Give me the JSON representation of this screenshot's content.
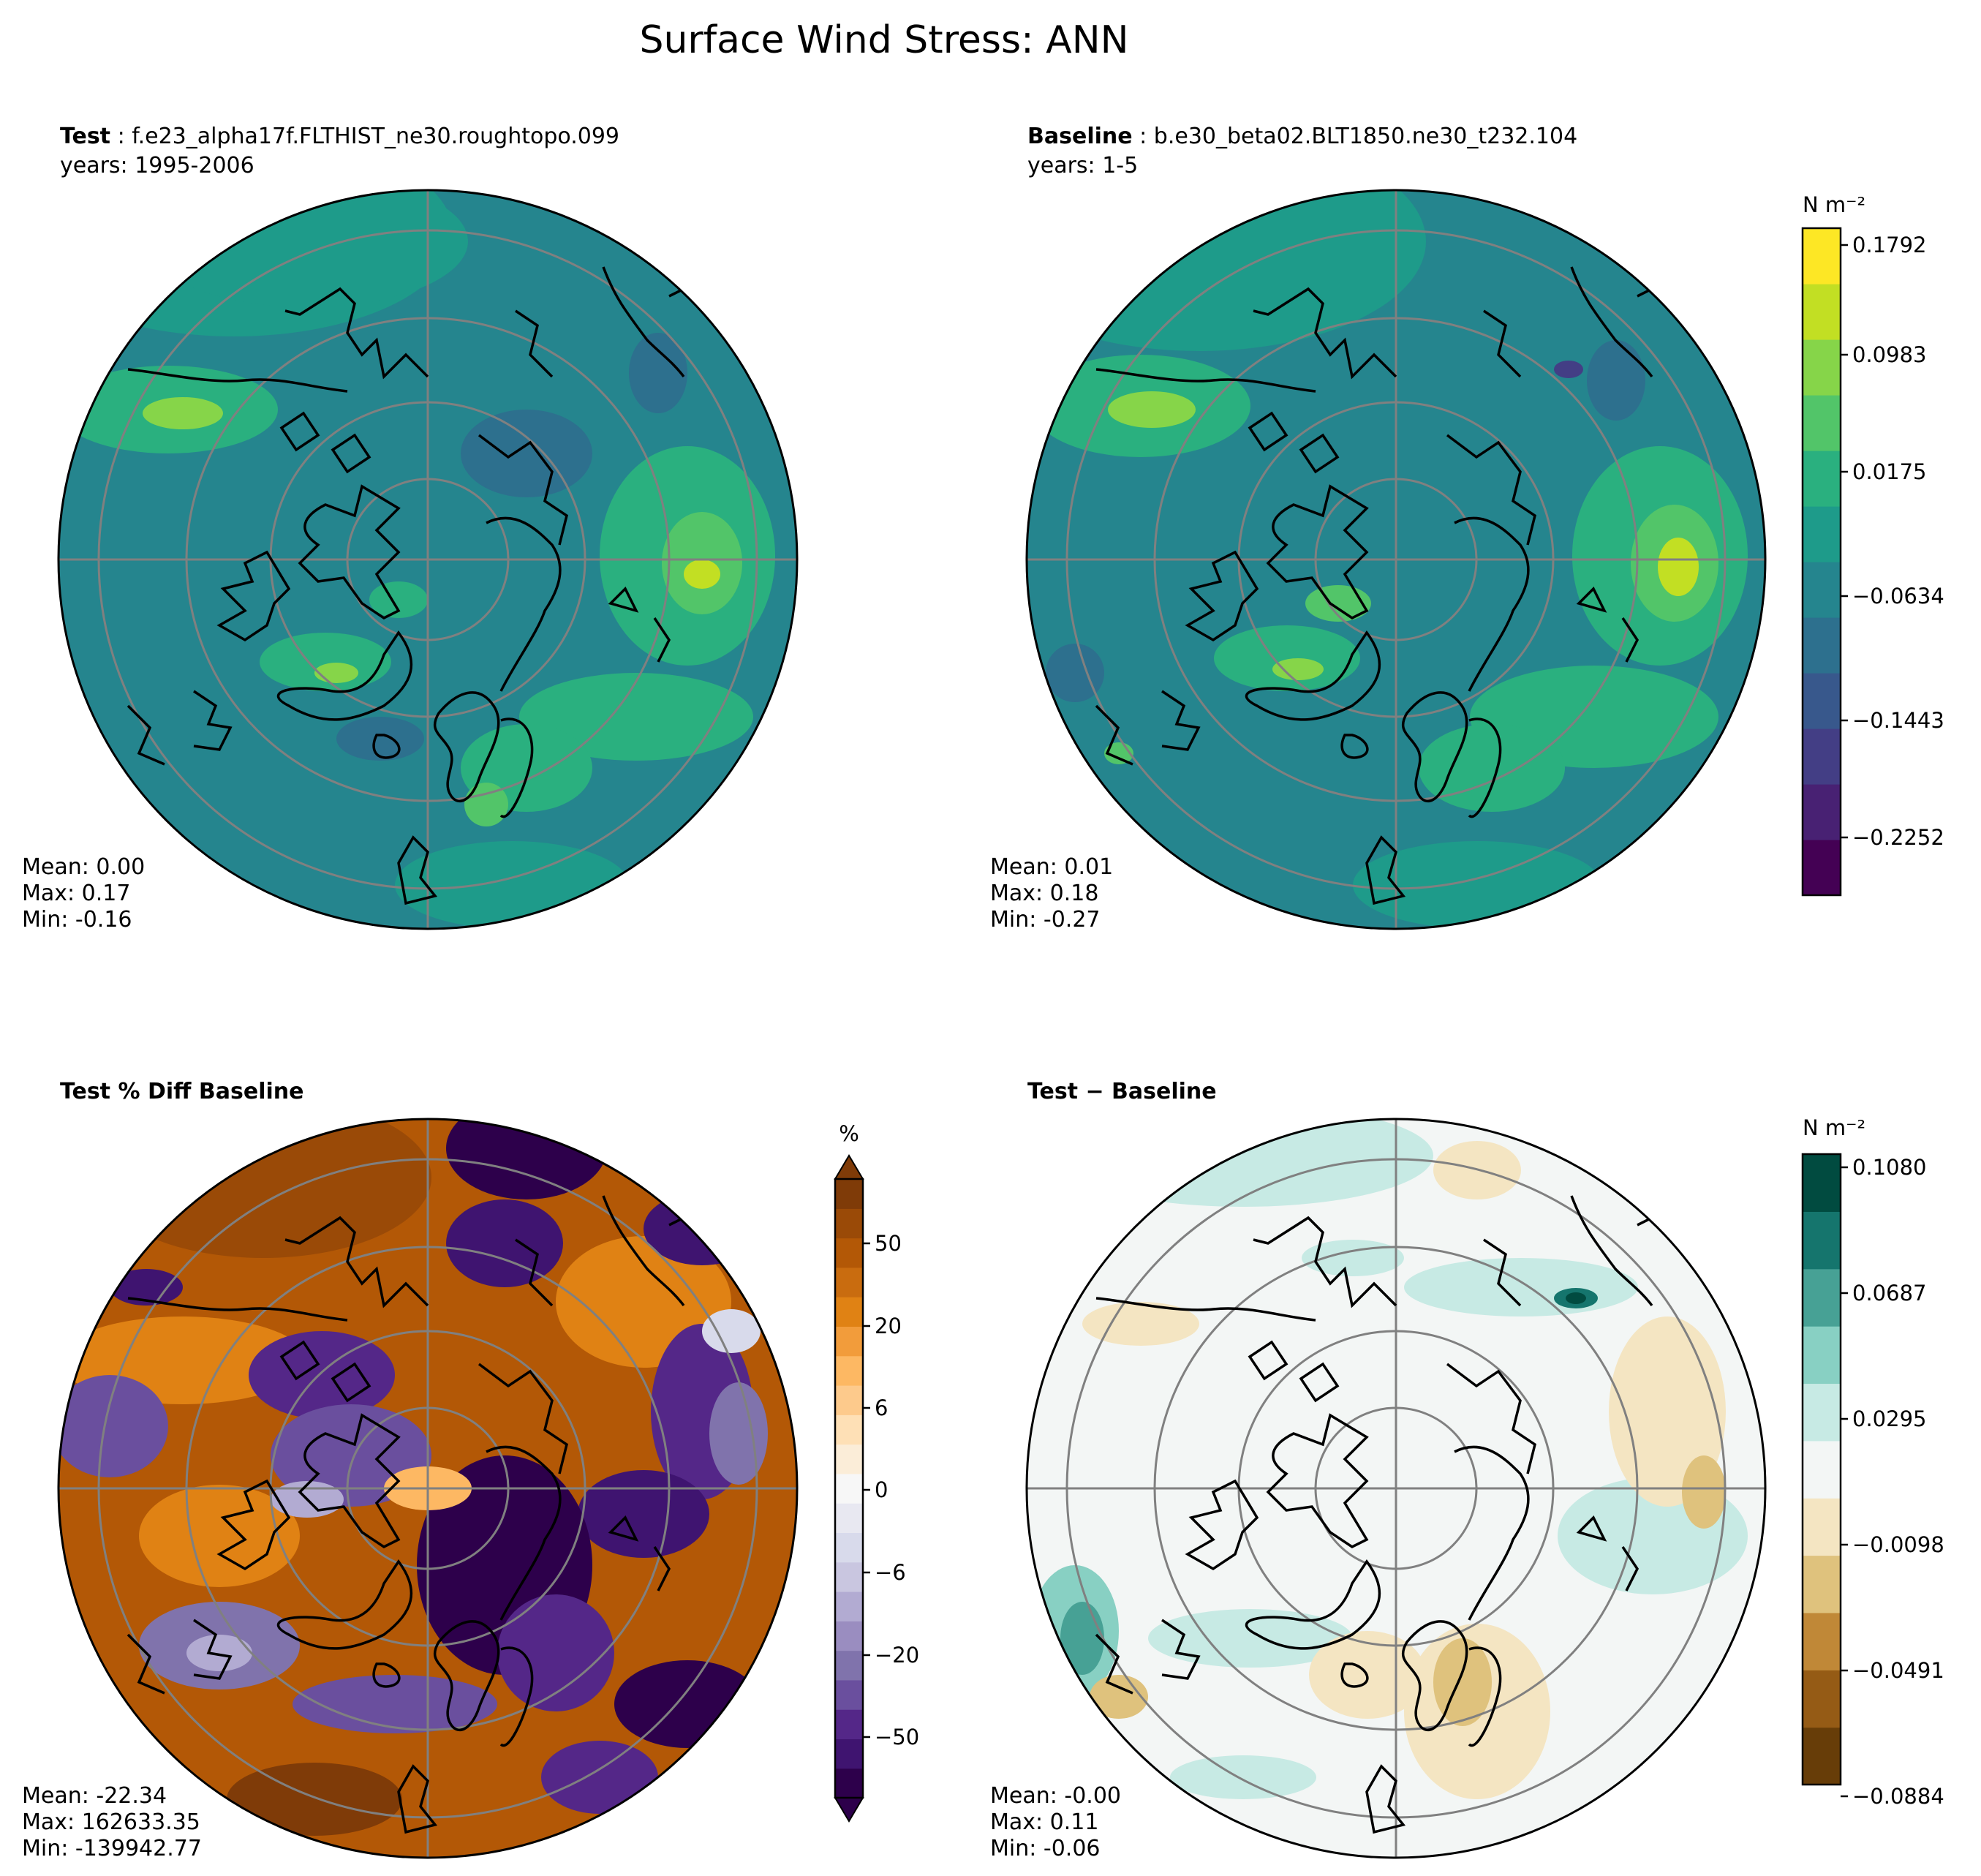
{
  "figure": {
    "title": "Surface Wind Stress: ANN"
  },
  "panels": {
    "test": {
      "label": "Test",
      "case": "f.e23_alpha17f.FLTHIST_ne30.roughtopo.099",
      "years": "years: 1995-2006",
      "stats": [
        "Mean:  0.00",
        "Max:  0.17",
        "Min: -0.16"
      ]
    },
    "baseline": {
      "label": "Baseline",
      "case": "b.e30_beta02.BLT1850.ne30_t232.104",
      "years": "years: 1-5",
      "stats": [
        "Mean:  0.01",
        "Max:  0.18",
        "Min: -0.27"
      ]
    },
    "pctdiff": {
      "title": "Test % Diff Baseline",
      "stats": [
        "Mean: -22.34",
        "Max: 162633.35",
        "Min: -139942.77"
      ]
    },
    "diff": {
      "title": "Test − Baseline",
      "stats": [
        "Mean: -0.00",
        "Max:  0.11",
        "Min: -0.06"
      ]
    }
  },
  "colorbars": {
    "main": {
      "unit_label": "N m⁻²",
      "ticks": [
        "0.1792",
        "0.0983",
        "0.0175",
        "−0.0634",
        "−0.1443",
        "−0.2252"
      ],
      "colors": [
        "#440154",
        "#482173",
        "#433e85",
        "#38588c",
        "#2d708e",
        "#25858e",
        "#1e9b8a",
        "#2ab07f",
        "#52c569",
        "#86d549",
        "#c2df23",
        "#fde725"
      ]
    },
    "pct": {
      "unit_label": "%",
      "ticks": [
        "50",
        "20",
        "6",
        "0",
        "−6",
        "−20",
        "−50"
      ],
      "colors": [
        "#2d004b",
        "#3f1470",
        "#542788",
        "#6a4f9e",
        "#8073ac",
        "#9a8dc0",
        "#b2abd2",
        "#c9c6e0",
        "#d8daeb",
        "#e8e8f1",
        "#f7f7f7",
        "#fbedd8",
        "#fee0b6",
        "#fdca8c",
        "#fdb863",
        "#f29c3b",
        "#e08214",
        "#c96c0f",
        "#b35806",
        "#9a4a07",
        "#7f3b08"
      ]
    },
    "diff": {
      "unit_label": "N m⁻²",
      "ticks": [
        "0.1080",
        "0.0687",
        "0.0295",
        "−0.0098",
        "−0.0491",
        "−0.0884"
      ],
      "colors": [
        "#673d08",
        "#955b15",
        "#c08837",
        "#dfc27d",
        "#f4e5c2",
        "#f3f6f5",
        "#c7eae4",
        "#88d0c3",
        "#47a195",
        "#15756d",
        "#014b40"
      ]
    }
  },
  "chart_data": [
    {
      "type": "heatmap",
      "title": "Test",
      "subtitle": "f.e23_alpha17f.FLTHIST_ne30.roughtopo.099",
      "projection": "north-polar-stereographic",
      "colorbar_label": "N m⁻²",
      "colorbar_ticks": [
        0.1792,
        0.0983,
        0.0175,
        -0.0634,
        -0.1443,
        -0.2252
      ],
      "stats": {
        "mean": 0.0,
        "max": 0.17,
        "min": -0.16
      }
    },
    {
      "type": "heatmap",
      "title": "Baseline",
      "subtitle": "b.e30_beta02.BLT1850.ne30_t232.104",
      "projection": "north-polar-stereographic",
      "colorbar_label": "N m⁻²",
      "colorbar_ticks": [
        0.1792,
        0.0983,
        0.0175,
        -0.0634,
        -0.1443,
        -0.2252
      ],
      "stats": {
        "mean": 0.01,
        "max": 0.18,
        "min": -0.27
      }
    },
    {
      "type": "heatmap",
      "title": "Test % Diff Baseline",
      "projection": "north-polar-stereographic",
      "colorbar_label": "%",
      "colorbar_ticks": [
        50,
        20,
        6,
        0,
        -6,
        -20,
        -50
      ],
      "stats": {
        "mean": -22.34,
        "max": 162633.35,
        "min": -139942.77
      }
    },
    {
      "type": "heatmap",
      "title": "Test − Baseline",
      "projection": "north-polar-stereographic",
      "colorbar_label": "N m⁻²",
      "colorbar_ticks": [
        0.108,
        0.0687,
        0.0295,
        -0.0098,
        -0.0491,
        -0.0884
      ],
      "stats": {
        "mean": -0.0,
        "max": 0.11,
        "min": -0.06
      }
    }
  ]
}
